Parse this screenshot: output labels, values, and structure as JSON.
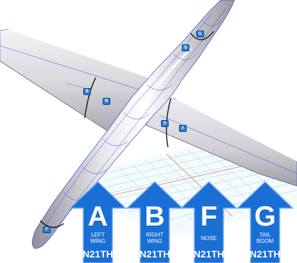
{
  "markers": {
    "g_upper": "G",
    "g_lower": "G",
    "b_left": "B",
    "b_right": "B",
    "a_left": "A",
    "a_right": "A",
    "nose_tip": "F"
  },
  "callouts": [
    {
      "letter": "A",
      "part": "LEFT\nWING",
      "registration": "N21TH"
    },
    {
      "letter": "B",
      "part": "RIGHT\nWING",
      "registration": "N21TH"
    },
    {
      "letter": "F",
      "part": "NOSE",
      "registration": "N21TH"
    },
    {
      "letter": "G",
      "part": "TAIL\nBOOM",
      "registration": "N21TH"
    }
  ],
  "colors": {
    "callout_fill": "#1a6fd4",
    "callout_stroke": "#7fb2ee",
    "marker_fill": "#2d7fd6",
    "grid_line": "#9fd0d6",
    "grid_axis": "#e05050",
    "surface_line": "#3a49d8",
    "joint_line": "#111111"
  }
}
